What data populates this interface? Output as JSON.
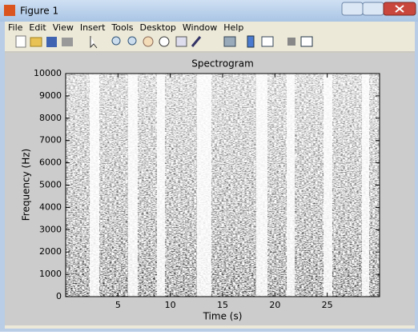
{
  "window": {
    "title": "Figure 1",
    "menu": [
      "File",
      "Edit",
      "View",
      "Insert",
      "Tools",
      "Desktop",
      "Window",
      "Help"
    ]
  },
  "chart_data": {
    "type": "spectrogram",
    "title": "Spectrogram",
    "x_label": "Time (s)",
    "y_label": "Frequency (Hz)",
    "xlim": [
      0,
      30
    ],
    "ylim": [
      0,
      10000
    ],
    "xticks": [
      5,
      10,
      15,
      20,
      25
    ],
    "yticks": [
      0,
      1000,
      2000,
      3000,
      4000,
      5000,
      6000,
      7000,
      8000,
      9000,
      10000
    ],
    "colormap": "gray"
  }
}
